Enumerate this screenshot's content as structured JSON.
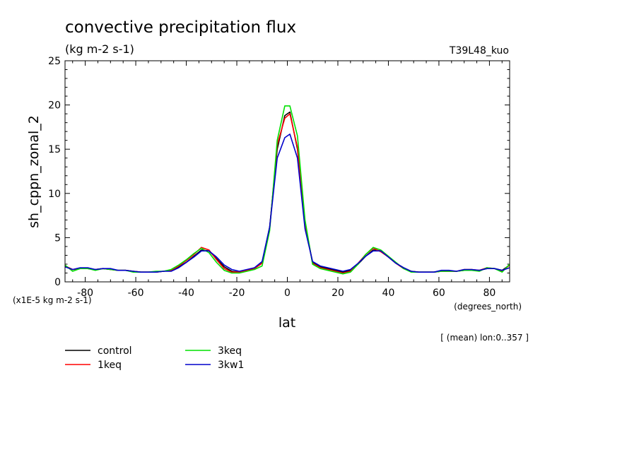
{
  "chart_data": {
    "type": "line",
    "title": "convective precipitation flux",
    "subtitle": "(kg m-2 s-1)",
    "experiment": "T39L48_kuo",
    "xlabel": "lat",
    "xunits": "(degrees_north)",
    "ylabel": "sh_cppn_zonal_2",
    "yunits": "(x1E-5 kg m-2 s-1)",
    "note": "[ (mean) lon:0..357 ]",
    "xlim": [
      -88,
      88
    ],
    "ylim": [
      0,
      25
    ],
    "x_ticks": [
      -80,
      -60,
      -40,
      -20,
      0,
      20,
      40,
      60,
      80
    ],
    "x_tick_labels": [
      "-80",
      "-60",
      "-40",
      "-20",
      "0",
      "20",
      "40",
      "60",
      "80"
    ],
    "y_ticks": [
      0,
      5,
      10,
      15,
      20,
      25
    ],
    "y_tick_labels": [
      "0",
      "5",
      "10",
      "15",
      "20",
      "25"
    ],
    "grid": false,
    "legend_position": "bottom-left",
    "x": [
      -88,
      -85,
      -82,
      -79,
      -76,
      -73,
      -70,
      -67,
      -64,
      -61,
      -58,
      -55,
      -52,
      -49,
      -46,
      -43,
      -40,
      -37,
      -34,
      -31,
      -28,
      -25,
      -22,
      -19,
      -16,
      -13,
      -10,
      -7,
      -4,
      -1,
      1,
      4,
      7,
      10,
      13,
      16,
      19,
      22,
      25,
      28,
      31,
      34,
      37,
      40,
      43,
      46,
      49,
      52,
      55,
      58,
      61,
      64,
      67,
      70,
      73,
      76,
      79,
      82,
      85,
      88
    ],
    "series": [
      {
        "name": "control",
        "color": "#000000",
        "values": [
          1.8,
          1.4,
          1.5,
          1.5,
          1.4,
          1.5,
          1.4,
          1.3,
          1.3,
          1.2,
          1.1,
          1.1,
          1.1,
          1.2,
          1.3,
          1.7,
          2.2,
          2.9,
          3.6,
          3.5,
          2.6,
          1.7,
          1.2,
          1.1,
          1.3,
          1.5,
          2.2,
          6.2,
          15.0,
          18.8,
          19.2,
          15.0,
          6.5,
          2.2,
          1.7,
          1.5,
          1.3,
          1.1,
          1.3,
          2.0,
          2.9,
          3.6,
          3.5,
          2.8,
          2.1,
          1.6,
          1.2,
          1.1,
          1.1,
          1.1,
          1.2,
          1.2,
          1.2,
          1.3,
          1.3,
          1.3,
          1.5,
          1.5,
          1.3,
          1.9
        ]
      },
      {
        "name": "1keq",
        "color": "#ff0000",
        "values": [
          1.8,
          1.4,
          1.5,
          1.5,
          1.4,
          1.5,
          1.4,
          1.3,
          1.3,
          1.2,
          1.1,
          1.1,
          1.1,
          1.2,
          1.3,
          1.8,
          2.4,
          3.1,
          3.9,
          3.6,
          2.5,
          1.5,
          1.1,
          1.1,
          1.3,
          1.5,
          2.1,
          6.0,
          15.5,
          18.5,
          19.0,
          15.2,
          6.6,
          2.1,
          1.6,
          1.4,
          1.2,
          1.0,
          1.2,
          2.1,
          3.1,
          3.8,
          3.4,
          2.8,
          2.1,
          1.5,
          1.2,
          1.1,
          1.1,
          1.1,
          1.2,
          1.2,
          1.2,
          1.4,
          1.4,
          1.3,
          1.6,
          1.5,
          1.2,
          1.9
        ]
      },
      {
        "name": "3keq",
        "color": "#00e000",
        "values": [
          1.9,
          1.2,
          1.5,
          1.5,
          1.3,
          1.5,
          1.4,
          1.3,
          1.3,
          1.1,
          1.1,
          1.1,
          1.2,
          1.2,
          1.4,
          1.9,
          2.5,
          3.2,
          3.8,
          3.3,
          2.2,
          1.3,
          1.0,
          1.0,
          1.2,
          1.4,
          1.8,
          5.8,
          16.0,
          19.9,
          19.9,
          16.5,
          7.0,
          2.0,
          1.5,
          1.3,
          1.1,
          0.9,
          1.1,
          2.0,
          3.1,
          3.9,
          3.6,
          2.9,
          2.2,
          1.5,
          1.1,
          1.1,
          1.1,
          1.1,
          1.2,
          1.2,
          1.2,
          1.3,
          1.3,
          1.2,
          1.6,
          1.5,
          1.1,
          2.0
        ]
      },
      {
        "name": "3kw1",
        "color": "#0000cc",
        "values": [
          1.7,
          1.4,
          1.6,
          1.6,
          1.4,
          1.5,
          1.5,
          1.3,
          1.3,
          1.2,
          1.1,
          1.1,
          1.1,
          1.2,
          1.2,
          1.6,
          2.2,
          2.8,
          3.5,
          3.5,
          2.8,
          1.9,
          1.4,
          1.2,
          1.4,
          1.6,
          2.3,
          6.2,
          14.0,
          16.3,
          16.7,
          14.0,
          6.0,
          2.3,
          1.8,
          1.6,
          1.4,
          1.2,
          1.4,
          2.1,
          2.9,
          3.5,
          3.5,
          2.8,
          2.1,
          1.6,
          1.2,
          1.1,
          1.1,
          1.1,
          1.3,
          1.3,
          1.2,
          1.4,
          1.4,
          1.3,
          1.5,
          1.5,
          1.3,
          1.6
        ]
      }
    ]
  }
}
